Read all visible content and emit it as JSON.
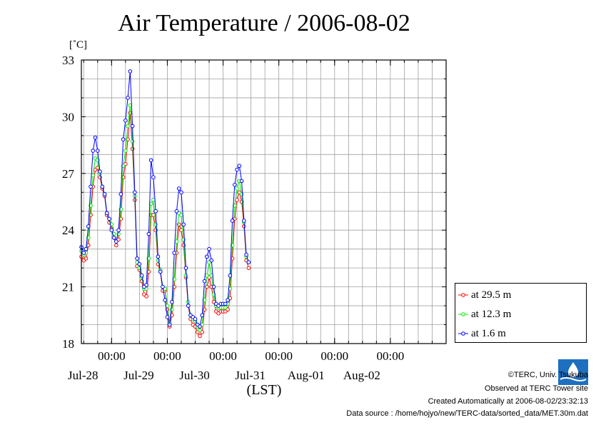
{
  "page": {
    "title": "Air Temperature / 2006-08-02",
    "unit_label": "[˚C]",
    "xaxis_label": "(LST)",
    "legend": [
      {
        "label": "at 29.5 m",
        "color": "#ff0000"
      },
      {
        "label": "at 12.3 m",
        "color": "#00ee00"
      },
      {
        "label": "at 1.6 m",
        "color": "#0000ff"
      }
    ],
    "footer": {
      "copyright": "©TERC, Univ. Tsukuba",
      "observed": "Observed at TERC Tower site",
      "created": "Created Automatically at 2006-08-02/23:32:13",
      "source": "Data source : /home/hojyo/new/TERC-data/sorted_data/MET.30m.dat"
    },
    "logo_icon": "terc-logo-icon"
  },
  "chart_data": {
    "type": "line",
    "title": "Air Temperature / 2006-08-02",
    "ylabel": "[˚C]",
    "xlabel": "(LST)",
    "xlim": [
      "2006-07-27 11:00",
      "2006-08-03 00:00"
    ],
    "ylim": [
      18,
      33
    ],
    "yticks": [
      18,
      21,
      24,
      27,
      30,
      33
    ],
    "xticks": [
      {
        "time": "2006-07-28 00:00",
        "label": "00:00",
        "date": "Jul-28"
      },
      {
        "time": "2006-07-29 00:00",
        "label": "00:00",
        "date": "Jul-29"
      },
      {
        "time": "2006-07-30 00:00",
        "label": "00:00",
        "date": "Jul-30"
      },
      {
        "time": "2006-07-31 00:00",
        "label": "00:00",
        "date": "Jul-31"
      },
      {
        "time": "2006-08-01 00:00",
        "label": "00:00",
        "date": "Aug-01"
      },
      {
        "time": "2006-08-02 00:00",
        "label": "00:00",
        "date": "Aug-02"
      }
    ],
    "grid": true,
    "legend_position": "right",
    "series": [
      {
        "name": "at 29.5 m",
        "color": "#ff0000",
        "points": [
          [
            "2006-07-27 11:00",
            22.6
          ],
          [
            "2006-07-27 12:00",
            22.4
          ],
          [
            "2006-07-27 13:00",
            22.5
          ],
          [
            "2006-07-27 14:00",
            23.2
          ],
          [
            "2006-07-27 15:00",
            24.8
          ],
          [
            "2006-07-27 16:00",
            26.3
          ],
          [
            "2006-07-27 17:00",
            27.2
          ],
          [
            "2006-07-27 18:00",
            27.3
          ],
          [
            "2006-07-27 19:00",
            26.8
          ],
          [
            "2006-07-27 20:00",
            26.2
          ],
          [
            "2006-07-27 21:00",
            25.8
          ],
          [
            "2006-07-27 22:00",
            24.8
          ],
          [
            "2006-07-27 23:00",
            24.4
          ],
          [
            "2006-07-28 00:00",
            24.1
          ],
          [
            "2006-07-28 01:00",
            23.6
          ],
          [
            "2006-07-28 02:00",
            23.2
          ],
          [
            "2006-07-28 03:00",
            23.5
          ],
          [
            "2006-07-28 04:00",
            24.6
          ],
          [
            "2006-07-28 05:00",
            26.8
          ],
          [
            "2006-07-28 06:00",
            27.5
          ],
          [
            "2006-07-28 07:00",
            28.8
          ],
          [
            "2006-07-28 08:00",
            30.2
          ],
          [
            "2006-07-28 09:00",
            28.3
          ],
          [
            "2006-07-28 10:00",
            25.6
          ],
          [
            "2006-07-28 11:00",
            22.1
          ],
          [
            "2006-07-28 12:00",
            21.9
          ],
          [
            "2006-07-28 13:00",
            21.3
          ],
          [
            "2006-07-28 14:00",
            20.6
          ],
          [
            "2006-07-28 15:00",
            20.5
          ],
          [
            "2006-07-28 16:00",
            21.8
          ],
          [
            "2006-07-28 17:00",
            24.8
          ],
          [
            "2006-07-28 18:00",
            24.8
          ],
          [
            "2006-07-28 19:00",
            24.0
          ],
          [
            "2006-07-28 20:00",
            22.2
          ],
          [
            "2006-07-28 21:00",
            21.8
          ],
          [
            "2006-07-28 22:00",
            20.8
          ],
          [
            "2006-07-28 23:00",
            20.8
          ],
          [
            "2006-07-29 00:00",
            19.8
          ],
          [
            "2006-07-29 01:00",
            18.9
          ],
          [
            "2006-07-29 02:00",
            19.5
          ],
          [
            "2006-07-29 03:00",
            21.0
          ],
          [
            "2006-07-29 04:00",
            22.8
          ],
          [
            "2006-07-29 05:00",
            24.3
          ],
          [
            "2006-07-29 06:00",
            24.0
          ],
          [
            "2006-07-29 07:00",
            23.2
          ],
          [
            "2006-07-29 08:00",
            21.5
          ],
          [
            "2006-07-29 09:00",
            20.0
          ],
          [
            "2006-07-29 10:00",
            19.3
          ],
          [
            "2006-07-29 11:00",
            19.0
          ],
          [
            "2006-07-29 12:00",
            18.9
          ],
          [
            "2006-07-29 13:00",
            18.6
          ],
          [
            "2006-07-29 14:00",
            18.4
          ],
          [
            "2006-07-29 15:00",
            18.6
          ],
          [
            "2006-07-29 16:00",
            19.8
          ],
          [
            "2006-07-29 17:00",
            21.0
          ],
          [
            "2006-07-29 18:00",
            21.5
          ],
          [
            "2006-07-29 19:00",
            21.0
          ],
          [
            "2006-07-29 20:00",
            20.2
          ],
          [
            "2006-07-29 21:00",
            19.7
          ],
          [
            "2006-07-29 22:00",
            19.6
          ],
          [
            "2006-07-29 23:00",
            19.7
          ],
          [
            "2006-07-30 00:00",
            19.7
          ],
          [
            "2006-07-30 01:00",
            19.7
          ],
          [
            "2006-07-30 02:00",
            19.8
          ],
          [
            "2006-07-30 03:00",
            20.4
          ],
          [
            "2006-07-30 04:00",
            22.5
          ],
          [
            "2006-07-30 05:00",
            24.6
          ],
          [
            "2006-07-30 06:00",
            25.6
          ],
          [
            "2006-07-30 07:00",
            26.0
          ],
          [
            "2006-07-30 08:00",
            25.5
          ],
          [
            "2006-07-30 09:00",
            24.2
          ],
          [
            "2006-07-30 10:00",
            22.4
          ],
          [
            "2006-07-30 11:00",
            22.0
          ]
        ]
      },
      {
        "name": "at 12.3 m",
        "color": "#00ee00",
        "points": [
          [
            "2006-07-27 11:00",
            22.9
          ],
          [
            "2006-07-27 12:00",
            22.7
          ],
          [
            "2006-07-27 13:00",
            22.8
          ],
          [
            "2006-07-27 14:00",
            23.6
          ],
          [
            "2006-07-27 15:00",
            25.3
          ],
          [
            "2006-07-27 16:00",
            26.9
          ],
          [
            "2006-07-27 17:00",
            27.8
          ],
          [
            "2006-07-27 18:00",
            27.7
          ],
          [
            "2006-07-27 19:00",
            27.0
          ],
          [
            "2006-07-27 20:00",
            26.3
          ],
          [
            "2006-07-27 21:00",
            25.9
          ],
          [
            "2006-07-27 22:00",
            24.9
          ],
          [
            "2006-07-27 23:00",
            24.6
          ],
          [
            "2006-07-28 00:00",
            24.3
          ],
          [
            "2006-07-28 01:00",
            23.8
          ],
          [
            "2006-07-28 02:00",
            23.4
          ],
          [
            "2006-07-28 03:00",
            23.8
          ],
          [
            "2006-07-28 04:00",
            25.1
          ],
          [
            "2006-07-28 05:00",
            27.4
          ],
          [
            "2006-07-28 06:00",
            28.2
          ],
          [
            "2006-07-28 07:00",
            29.5
          ],
          [
            "2006-07-28 08:00",
            30.6
          ],
          [
            "2006-07-28 09:00",
            28.7
          ],
          [
            "2006-07-28 10:00",
            25.8
          ],
          [
            "2006-07-28 11:00",
            22.3
          ],
          [
            "2006-07-28 12:00",
            22.0
          ],
          [
            "2006-07-28 13:00",
            21.5
          ],
          [
            "2006-07-28 14:00",
            20.9
          ],
          [
            "2006-07-28 15:00",
            20.9
          ],
          [
            "2006-07-28 16:00",
            22.5
          ],
          [
            "2006-07-28 17:00",
            25.4
          ],
          [
            "2006-07-28 18:00",
            25.6
          ],
          [
            "2006-07-28 19:00",
            24.3
          ],
          [
            "2006-07-28 20:00",
            22.4
          ],
          [
            "2006-07-28 21:00",
            21.9
          ],
          [
            "2006-07-28 22:00",
            21.0
          ],
          [
            "2006-07-28 23:00",
            20.9
          ],
          [
            "2006-07-29 00:00",
            20.0
          ],
          [
            "2006-07-29 01:00",
            19.1
          ],
          [
            "2006-07-29 02:00",
            19.8
          ],
          [
            "2006-07-29 03:00",
            21.4
          ],
          [
            "2006-07-29 04:00",
            23.4
          ],
          [
            "2006-07-29 05:00",
            24.9
          ],
          [
            "2006-07-29 06:00",
            24.8
          ],
          [
            "2006-07-29 07:00",
            23.5
          ],
          [
            "2006-07-29 08:00",
            21.6
          ],
          [
            "2006-07-29 09:00",
            20.2
          ],
          [
            "2006-07-29 10:00",
            19.5
          ],
          [
            "2006-07-29 11:00",
            19.3
          ],
          [
            "2006-07-29 12:00",
            19.2
          ],
          [
            "2006-07-29 13:00",
            18.9
          ],
          [
            "2006-07-29 14:00",
            18.7
          ],
          [
            "2006-07-29 15:00",
            19.0
          ],
          [
            "2006-07-29 16:00",
            20.3
          ],
          [
            "2006-07-29 17:00",
            21.6
          ],
          [
            "2006-07-29 18:00",
            22.3
          ],
          [
            "2006-07-29 19:00",
            21.6
          ],
          [
            "2006-07-29 20:00",
            20.6
          ],
          [
            "2006-07-29 21:00",
            20.0
          ],
          [
            "2006-07-29 22:00",
            19.9
          ],
          [
            "2006-07-29 23:00",
            19.9
          ],
          [
            "2006-07-30 00:00",
            19.9
          ],
          [
            "2006-07-30 01:00",
            19.9
          ],
          [
            "2006-07-30 02:00",
            20.1
          ],
          [
            "2006-07-30 03:00",
            20.9
          ],
          [
            "2006-07-30 04:00",
            23.2
          ],
          [
            "2006-07-30 05:00",
            25.3
          ],
          [
            "2006-07-30 06:00",
            26.2
          ],
          [
            "2006-07-30 07:00",
            26.6
          ],
          [
            "2006-07-30 08:00",
            25.9
          ],
          [
            "2006-07-30 09:00",
            24.4
          ],
          [
            "2006-07-30 10:00",
            22.6
          ],
          [
            "2006-07-30 11:00",
            22.3
          ]
        ]
      },
      {
        "name": "at 1.6 m",
        "color": "#0000ff",
        "points": [
          [
            "2006-07-27 11:00",
            23.1
          ],
          [
            "2006-07-27 12:00",
            22.8
          ],
          [
            "2006-07-27 13:00",
            23.0
          ],
          [
            "2006-07-27 14:00",
            24.2
          ],
          [
            "2006-07-27 15:00",
            26.3
          ],
          [
            "2006-07-27 16:00",
            28.2
          ],
          [
            "2006-07-27 17:00",
            28.9
          ],
          [
            "2006-07-27 18:00",
            28.2
          ],
          [
            "2006-07-27 19:00",
            27.1
          ],
          [
            "2006-07-27 20:00",
            26.3
          ],
          [
            "2006-07-27 21:00",
            25.9
          ],
          [
            "2006-07-27 22:00",
            24.9
          ],
          [
            "2006-07-27 23:00",
            24.6
          ],
          [
            "2006-07-28 00:00",
            24.0
          ],
          [
            "2006-07-28 01:00",
            23.6
          ],
          [
            "2006-07-28 02:00",
            23.4
          ],
          [
            "2006-07-28 03:00",
            24.0
          ],
          [
            "2006-07-28 04:00",
            25.9
          ],
          [
            "2006-07-28 05:00",
            28.8
          ],
          [
            "2006-07-28 06:00",
            29.8
          ],
          [
            "2006-07-28 07:00",
            31.0
          ],
          [
            "2006-07-28 08:00",
            32.4
          ],
          [
            "2006-07-28 09:00",
            29.5
          ],
          [
            "2006-07-28 10:00",
            26.0
          ],
          [
            "2006-07-28 11:00",
            22.5
          ],
          [
            "2006-07-28 12:00",
            22.2
          ],
          [
            "2006-07-28 13:00",
            21.6
          ],
          [
            "2006-07-28 14:00",
            21.0
          ],
          [
            "2006-07-28 15:00",
            21.1
          ],
          [
            "2006-07-28 16:00",
            23.8
          ],
          [
            "2006-07-28 17:00",
            27.7
          ],
          [
            "2006-07-28 18:00",
            26.8
          ],
          [
            "2006-07-28 19:00",
            25.0
          ],
          [
            "2006-07-28 20:00",
            22.6
          ],
          [
            "2006-07-28 21:00",
            21.8
          ],
          [
            "2006-07-28 22:00",
            21.0
          ],
          [
            "2006-07-28 23:00",
            20.3
          ],
          [
            "2006-07-29 00:00",
            19.4
          ],
          [
            "2006-07-29 01:00",
            19.0
          ],
          [
            "2006-07-29 02:00",
            20.2
          ],
          [
            "2006-07-29 03:00",
            22.8
          ],
          [
            "2006-07-29 04:00",
            25.0
          ],
          [
            "2006-07-29 05:00",
            26.2
          ],
          [
            "2006-07-29 06:00",
            26.0
          ],
          [
            "2006-07-29 07:00",
            24.3
          ],
          [
            "2006-07-29 08:00",
            22.0
          ],
          [
            "2006-07-29 09:00",
            20.0
          ],
          [
            "2006-07-29 10:00",
            19.5
          ],
          [
            "2006-07-29 11:00",
            19.4
          ],
          [
            "2006-07-29 12:00",
            19.3
          ],
          [
            "2006-07-29 13:00",
            19.0
          ],
          [
            "2006-07-29 14:00",
            18.9
          ],
          [
            "2006-07-29 15:00",
            19.5
          ],
          [
            "2006-07-29 16:00",
            21.3
          ],
          [
            "2006-07-29 17:00",
            22.6
          ],
          [
            "2006-07-29 18:00",
            23.0
          ],
          [
            "2006-07-29 19:00",
            22.4
          ],
          [
            "2006-07-29 20:00",
            21.0
          ],
          [
            "2006-07-29 21:00",
            20.1
          ],
          [
            "2006-07-29 22:00",
            20.0
          ],
          [
            "2006-07-29 23:00",
            20.1
          ],
          [
            "2006-07-30 00:00",
            20.1
          ],
          [
            "2006-07-30 01:00",
            20.1
          ],
          [
            "2006-07-30 02:00",
            20.3
          ],
          [
            "2006-07-30 03:00",
            21.6
          ],
          [
            "2006-07-30 04:00",
            24.5
          ],
          [
            "2006-07-30 05:00",
            26.4
          ],
          [
            "2006-07-30 06:00",
            27.2
          ],
          [
            "2006-07-30 07:00",
            27.4
          ],
          [
            "2006-07-30 08:00",
            26.6
          ],
          [
            "2006-07-30 09:00",
            24.5
          ],
          [
            "2006-07-30 10:00",
            22.7
          ],
          [
            "2006-07-30 11:00",
            22.3
          ]
        ]
      }
    ]
  }
}
